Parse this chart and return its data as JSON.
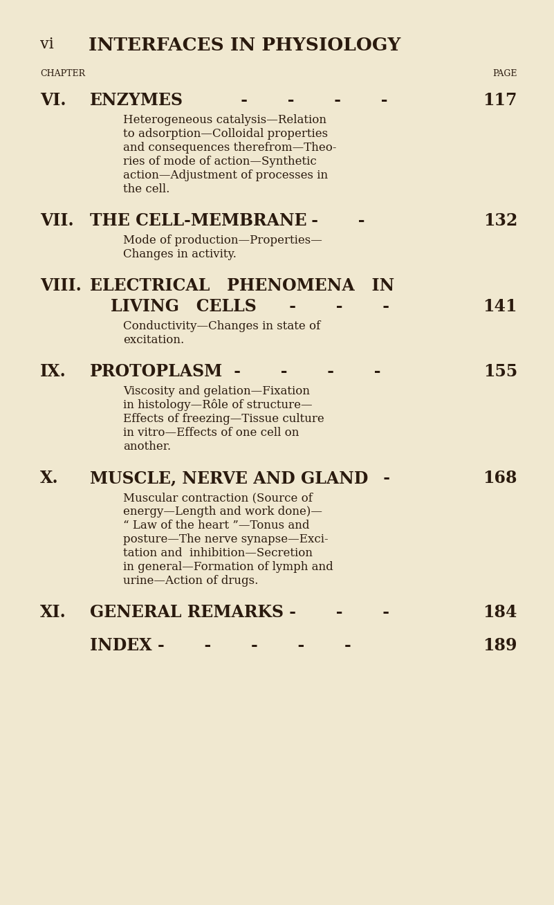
{
  "background_color": "#f0e8d0",
  "text_color": "#2a1a0e",
  "page_width": 8.01,
  "page_height": 13.08,
  "dpi": 100,
  "header_title": "INTERFACES IN PHYSIOLOGY",
  "header_prefix": "vi",
  "col_chapter_label": "CHAPTER",
  "col_page_label": "PAGE",
  "entries": [
    {
      "num": "VI.",
      "title": "ENZYMES",
      "dashes": " -       -       -       -",
      "page": "117",
      "description": "Heterogeneous catalysis—Relation\nto adsorption—Colloidal properties\nand consequences therefrom—Theo-\nries of mode of action—Synthetic\naction—Adjustment of processes in\nthe cell."
    },
    {
      "num": "VII.",
      "title": "THE CELL-MEMBRANE",
      "dashes": " -       -",
      "page": "132",
      "description": "Mode of production—Properties—\nChanges in activity."
    },
    {
      "num": "VIII.",
      "title": "ELECTRICAL   PHENOMENA   IN",
      "title2": "LIVING   CELLS",
      "dashes2": " -       -       -",
      "page": "141",
      "description": "Conductivity—Changes in state of\nexcitation."
    },
    {
      "num": "IX.",
      "title": "PROTOPLASM",
      "dashes": " -       -       -       -",
      "page": "155",
      "description": "Viscosity and gelation—Fixation\nin histology—Rôle of structure—\nEffects of freezing—Tissue culture\nin vitro—Effects of one cell on\nanother."
    },
    {
      "num": "X.",
      "title": "MUSCLE, NERVE AND GLAND",
      "dashes": " -",
      "page": "168",
      "description": "Muscular contraction (Source of\nenergy—Length and work done)—\n“ Law of the heart ”—Tonus and\nposture—The nerve synapse—Exci-\ntation and  inhibition—Secretion\nin general—Formation of lymph and\nurine—Action of drugs."
    },
    {
      "num": "XI.",
      "title": "GENERAL REMARKS -",
      "dashes": "       -       -",
      "page": "184",
      "description": ""
    }
  ],
  "index_entry": {
    "title": "INDEX",
    "dashes": " -       -       -       -       -",
    "page": "189"
  }
}
